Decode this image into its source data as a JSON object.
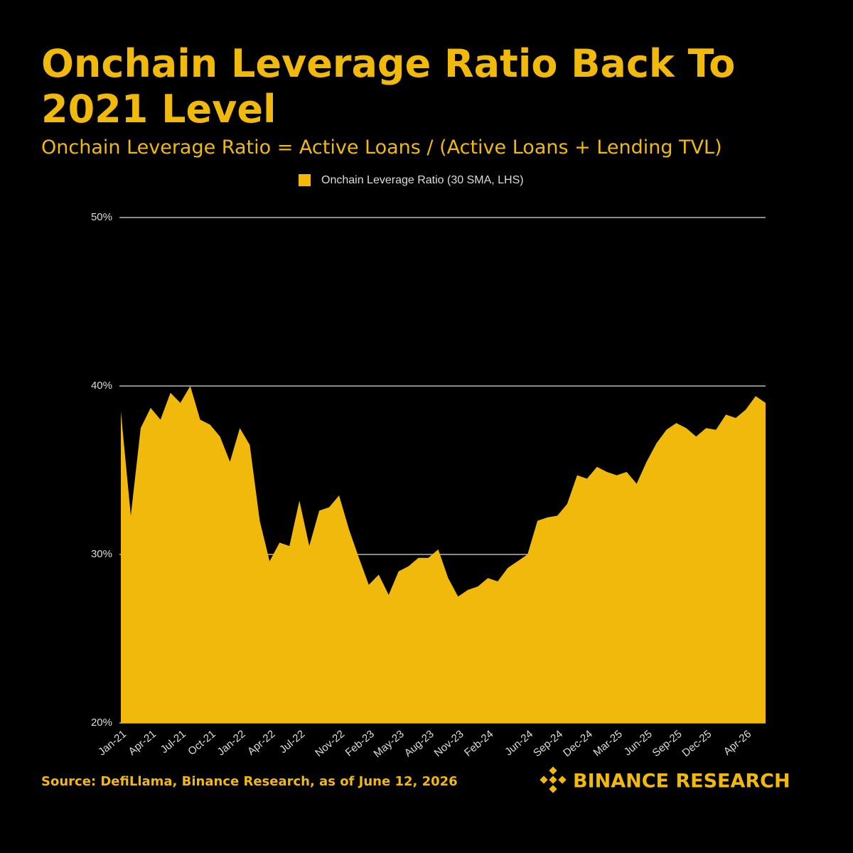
{
  "chart_data": {
    "type": "area",
    "title": "Onchain Leverage Ratio Back To 2021 Level",
    "subtitle": "Onchain Leverage Ratio = Active Loans / (Active Loans + Lending TVL)",
    "source": "Source: DefiLlama, Binance Research, as of June 12, 2026",
    "brand": "BINANCE RESEARCH",
    "categories": [
      "Jan-21",
      null,
      null,
      "Apr-21",
      null,
      null,
      "Jul-21",
      null,
      null,
      "Oct-21",
      null,
      null,
      "Jan-22",
      null,
      null,
      "Apr-22",
      null,
      null,
      "Jul-22",
      null,
      null,
      null,
      "Nov-22",
      null,
      null,
      "Feb-23",
      null,
      null,
      "May-23",
      null,
      null,
      "Aug-23",
      null,
      null,
      "Nov-23",
      null,
      null,
      "Feb-24",
      null,
      null,
      null,
      "Jun-24",
      null,
      null,
      "Sep-24",
      null,
      null,
      "Dec-24",
      null,
      null,
      "Mar-25",
      null,
      null,
      "Jun-25",
      null,
      null,
      "Sep-25",
      null,
      null,
      "Dec-25",
      null,
      null,
      null,
      "Apr-26",
      null,
      null
    ],
    "series": [
      {
        "name": "Onchain Leverage Ratio (30 SMA, LHS)",
        "color": "#f0b90b",
        "values": [
          38.5,
          32.3,
          37.5,
          38.7,
          38.0,
          39.6,
          39.0,
          40.0,
          38.0,
          37.7,
          37.0,
          35.5,
          37.5,
          36.5,
          32.0,
          29.6,
          30.7,
          30.5,
          33.2,
          30.5,
          32.6,
          32.8,
          33.5,
          31.5,
          29.8,
          28.2,
          28.8,
          27.6,
          29.0,
          29.3,
          29.8,
          29.8,
          30.3,
          28.6,
          27.5,
          27.9,
          28.1,
          28.6,
          28.4,
          29.2,
          29.6,
          30.0,
          32.0,
          32.2,
          32.3,
          33.0,
          34.7,
          34.5,
          35.2,
          34.9,
          34.7,
          34.9,
          34.2,
          35.5,
          36.6,
          37.4,
          37.8,
          37.5,
          37.0,
          37.5,
          37.4,
          38.3,
          38.1,
          38.6,
          39.4,
          39.0
        ]
      }
    ],
    "ylim": [
      20,
      50
    ],
    "yticks": [
      {
        "value": 20,
        "label": "20%"
      },
      {
        "value": 30,
        "label": "30%"
      },
      {
        "value": 40,
        "label": "40%"
      },
      {
        "value": 50,
        "label": "50%"
      }
    ],
    "grid": true
  }
}
